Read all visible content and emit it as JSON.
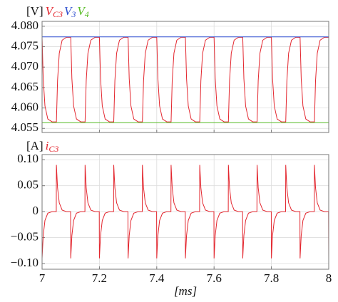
{
  "chart_data": [
    {
      "type": "line",
      "ylabel": "[V]",
      "xlim": [
        7,
        8
      ],
      "ylim": [
        4.054,
        4.0812
      ],
      "yticks": [
        {
          "value": 4.055,
          "label": "4.055"
        },
        {
          "value": 4.06,
          "label": "4.060"
        },
        {
          "value": 4.065,
          "label": "4.065"
        },
        {
          "value": 4.07,
          "label": "4.070"
        },
        {
          "value": 4.075,
          "label": "4.075"
        },
        {
          "value": 4.08,
          "label": "4.080"
        }
      ],
      "grid": true,
      "series": [
        {
          "name": "VC3",
          "color": "#e3262e",
          "x": [
            7,
            7.004,
            7.01,
            7.02,
            7.035,
            7.0495,
            7.05,
            7.054,
            7.06,
            7.07,
            7.085,
            7.0995,
            7.1,
            7.104,
            7.11,
            7.12,
            7.135,
            7.1495,
            7.15,
            7.154,
            7.16,
            7.17,
            7.185,
            7.1995,
            7.2,
            7.204,
            7.21,
            7.22,
            7.235,
            7.2495,
            7.25,
            7.254,
            7.26,
            7.27,
            7.285,
            7.2995,
            7.3,
            7.304,
            7.31,
            7.32,
            7.335,
            7.3495,
            7.35,
            7.354,
            7.36,
            7.37,
            7.385,
            7.3995,
            7.4,
            7.404,
            7.41,
            7.42,
            7.435,
            7.4495,
            7.45,
            7.454,
            7.46,
            7.47,
            7.485,
            7.4995,
            7.5,
            7.504,
            7.51,
            7.52,
            7.535,
            7.5495,
            7.55,
            7.554,
            7.56,
            7.57,
            7.585,
            7.5995,
            7.6,
            7.604,
            7.61,
            7.62,
            7.635,
            7.6495,
            7.65,
            7.654,
            7.66,
            7.67,
            7.685,
            7.6995,
            7.7,
            7.704,
            7.71,
            7.72,
            7.735,
            7.7495,
            7.75,
            7.754,
            7.76,
            7.77,
            7.785,
            7.7995,
            7.8,
            7.804,
            7.81,
            7.82,
            7.835,
            7.8495,
            7.85,
            7.854,
            7.86,
            7.87,
            7.885,
            7.8995,
            7.9,
            7.904,
            7.91,
            7.92,
            7.935,
            7.9495,
            7.95,
            7.954,
            7.96,
            7.97,
            7.985,
            7.9995,
            8
          ],
          "values": [
            4.0773,
            4.0672,
            4.0605,
            4.0573,
            4.0566,
            4.0566,
            4.0566,
            4.0667,
            4.0734,
            4.0766,
            4.0773,
            4.0773,
            4.0773,
            4.0672,
            4.0605,
            4.0573,
            4.0566,
            4.0566,
            4.0566,
            4.0667,
            4.0734,
            4.0766,
            4.0773,
            4.0773,
            4.0773,
            4.0672,
            4.0605,
            4.0573,
            4.0566,
            4.0566,
            4.0566,
            4.0667,
            4.0734,
            4.0766,
            4.0773,
            4.0773,
            4.0773,
            4.0672,
            4.0605,
            4.0573,
            4.0566,
            4.0566,
            4.0566,
            4.0667,
            4.0734,
            4.0766,
            4.0773,
            4.0773,
            4.0773,
            4.0672,
            4.0605,
            4.0573,
            4.0566,
            4.0566,
            4.0566,
            4.0667,
            4.0734,
            4.0766,
            4.0773,
            4.0773,
            4.0773,
            4.0672,
            4.0605,
            4.0573,
            4.0566,
            4.0566,
            4.0566,
            4.0667,
            4.0734,
            4.0766,
            4.0773,
            4.0773,
            4.0773,
            4.0672,
            4.0605,
            4.0573,
            4.0566,
            4.0566,
            4.0566,
            4.0667,
            4.0734,
            4.0766,
            4.0773,
            4.0773,
            4.0773,
            4.0672,
            4.0605,
            4.0573,
            4.0566,
            4.0566,
            4.0566,
            4.0667,
            4.0734,
            4.0766,
            4.0773,
            4.0773,
            4.0773,
            4.0672,
            4.0605,
            4.0573,
            4.0566,
            4.0566,
            4.0566,
            4.0667,
            4.0734,
            4.0766,
            4.0773,
            4.0773,
            4.0773,
            4.0672,
            4.0605,
            4.0573,
            4.0566,
            4.0566,
            4.0566,
            4.0667,
            4.0734,
            4.0766,
            4.0773,
            4.0773,
            4.0773
          ]
        },
        {
          "name": "V3",
          "color": "#2e4fcf",
          "x": [
            7,
            8
          ],
          "values": [
            4.0774,
            4.0774
          ]
        },
        {
          "name": "V4",
          "color": "#55bb22",
          "x": [
            7,
            8
          ],
          "values": [
            4.0564,
            4.0564
          ]
        }
      ]
    },
    {
      "type": "line",
      "ylabel": "[A]",
      "xlabel": "[ms]",
      "xlim": [
        7,
        8
      ],
      "ylim": [
        -0.111,
        0.11
      ],
      "xticks": [
        7,
        7.2,
        7.4,
        7.6,
        7.8,
        8
      ],
      "yticks": [
        {
          "value": -0.1,
          "label": "−0.10"
        },
        {
          "value": -0.05,
          "label": "−0.05"
        },
        0,
        0.05,
        {
          "value": 0.1,
          "label": "0.10"
        }
      ],
      "grid": true,
      "series": [
        {
          "name": "iC3",
          "color": "#e3262e",
          "x": [
            7,
            7.004,
            7.01,
            7.02,
            7.035,
            7.0495,
            7.05,
            7.054,
            7.06,
            7.07,
            7.085,
            7.0995,
            7.1,
            7.104,
            7.11,
            7.12,
            7.135,
            7.1495,
            7.15,
            7.154,
            7.16,
            7.17,
            7.185,
            7.1995,
            7.2,
            7.204,
            7.21,
            7.22,
            7.235,
            7.2495,
            7.25,
            7.254,
            7.26,
            7.27,
            7.285,
            7.2995,
            7.3,
            7.304,
            7.31,
            7.32,
            7.335,
            7.3495,
            7.35,
            7.354,
            7.36,
            7.37,
            7.385,
            7.3995,
            7.4,
            7.404,
            7.41,
            7.42,
            7.435,
            7.4495,
            7.45,
            7.454,
            7.46,
            7.47,
            7.485,
            7.4995,
            7.5,
            7.504,
            7.51,
            7.52,
            7.535,
            7.5495,
            7.55,
            7.554,
            7.56,
            7.57,
            7.585,
            7.5995,
            7.6,
            7.604,
            7.61,
            7.62,
            7.635,
            7.6495,
            7.65,
            7.654,
            7.66,
            7.67,
            7.685,
            7.6995,
            7.7,
            7.704,
            7.71,
            7.72,
            7.735,
            7.7495,
            7.75,
            7.754,
            7.76,
            7.77,
            7.785,
            7.7995,
            7.8,
            7.804,
            7.81,
            7.82,
            7.835,
            7.8495,
            7.85,
            7.854,
            7.86,
            7.87,
            7.885,
            7.8995,
            7.9,
            7.904,
            7.91,
            7.92,
            7.935,
            7.9495,
            7.95,
            7.954,
            7.96,
            7.97,
            7.985,
            7.9995,
            8
          ],
          "values": [
            -0.09,
            -0.046,
            -0.017,
            -0.003,
            0,
            0,
            0.09,
            0.046,
            0.017,
            0.003,
            0,
            0,
            -0.09,
            -0.046,
            -0.017,
            -0.003,
            0,
            0,
            0.09,
            0.046,
            0.017,
            0.003,
            0,
            0,
            -0.09,
            -0.046,
            -0.017,
            -0.003,
            0,
            0,
            0.09,
            0.046,
            0.017,
            0.003,
            0,
            0,
            -0.09,
            -0.046,
            -0.017,
            -0.003,
            0,
            0,
            0.09,
            0.046,
            0.017,
            0.003,
            0,
            0,
            -0.09,
            -0.046,
            -0.017,
            -0.003,
            0,
            0,
            0.09,
            0.046,
            0.017,
            0.003,
            0,
            0,
            -0.09,
            -0.046,
            -0.017,
            -0.003,
            0,
            0,
            0.09,
            0.046,
            0.017,
            0.003,
            0,
            0,
            -0.09,
            -0.046,
            -0.017,
            -0.003,
            0,
            0,
            0.09,
            0.046,
            0.017,
            0.003,
            0,
            0,
            -0.09,
            -0.046,
            -0.017,
            -0.003,
            0,
            0,
            0.09,
            0.046,
            0.017,
            0.003,
            0,
            0,
            -0.09,
            -0.046,
            -0.017,
            -0.003,
            0,
            0,
            0.09,
            0.046,
            0.017,
            0.003,
            0,
            0,
            -0.09,
            -0.046,
            -0.017,
            -0.003,
            0,
            0,
            0.09,
            0.046,
            0.017,
            0.003,
            0,
            0,
            -0.09
          ]
        }
      ]
    }
  ]
}
